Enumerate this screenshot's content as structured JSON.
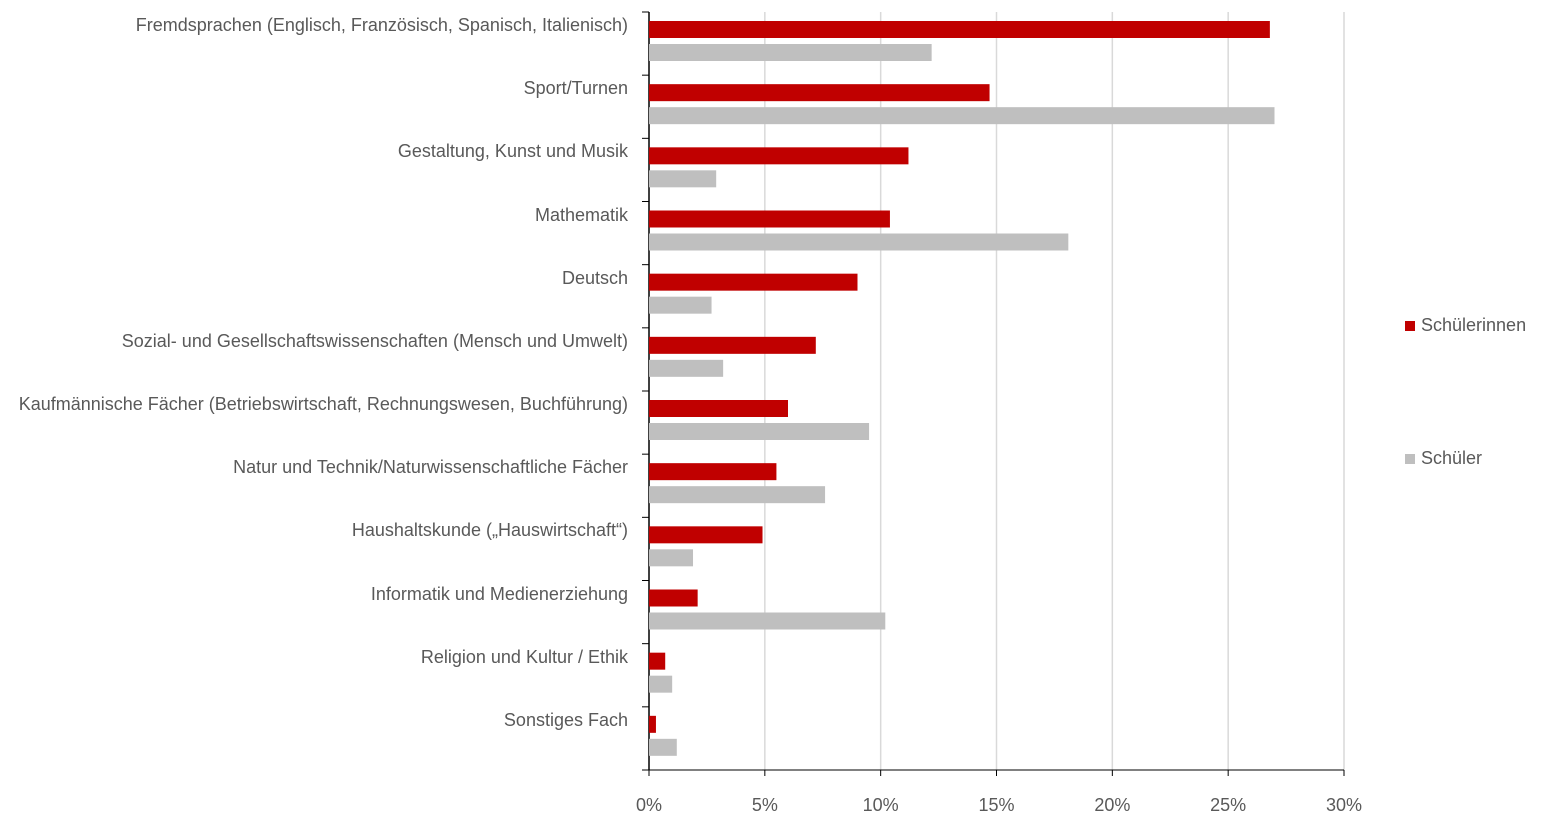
{
  "chart_data": {
    "type": "bar",
    "orientation": "horizontal",
    "categories": [
      "Fremdsprachen (Englisch, Französisch, Spanisch, Italienisch)",
      "Sport/Turnen",
      "Gestaltung, Kunst und Musik",
      "Mathematik",
      "Deutsch",
      "Sozial- und Gesellschaftswissenschaften (Mensch und Umwelt)",
      "Kaufmännische Fächer (Betriebswirtschaft, Rechnungswesen, Buchführung)",
      "Natur und Technik/Naturwissenschaftliche Fächer",
      "Haushaltskunde („Hauswirtschaft“)",
      "Informatik und Medienerziehung",
      "Religion und Kultur / Ethik",
      "Sonstiges Fach"
    ],
    "series": [
      {
        "name": "Schülerinnen",
        "color": "#c00000",
        "values": [
          26.8,
          14.7,
          11.2,
          10.4,
          9.0,
          7.2,
          6.0,
          5.5,
          4.9,
          2.1,
          0.7,
          0.3
        ]
      },
      {
        "name": "Schüler",
        "color": "#bfbfbf",
        "values": [
          12.2,
          27.0,
          2.9,
          18.1,
          2.7,
          3.2,
          9.5,
          7.6,
          1.9,
          10.2,
          1.0,
          1.2
        ]
      }
    ],
    "xlim": [
      0,
      30
    ],
    "xticks": [
      {
        "value": 0,
        "label": "0%"
      },
      {
        "value": 5,
        "label": "5%"
      },
      {
        "value": 10,
        "label": "10%"
      },
      {
        "value": 15,
        "label": "15%"
      },
      {
        "value": 20,
        "label": "20%"
      },
      {
        "value": 25,
        "label": "25%"
      },
      {
        "value": 30,
        "label": "30%"
      }
    ],
    "grid": true,
    "legend": "right"
  }
}
